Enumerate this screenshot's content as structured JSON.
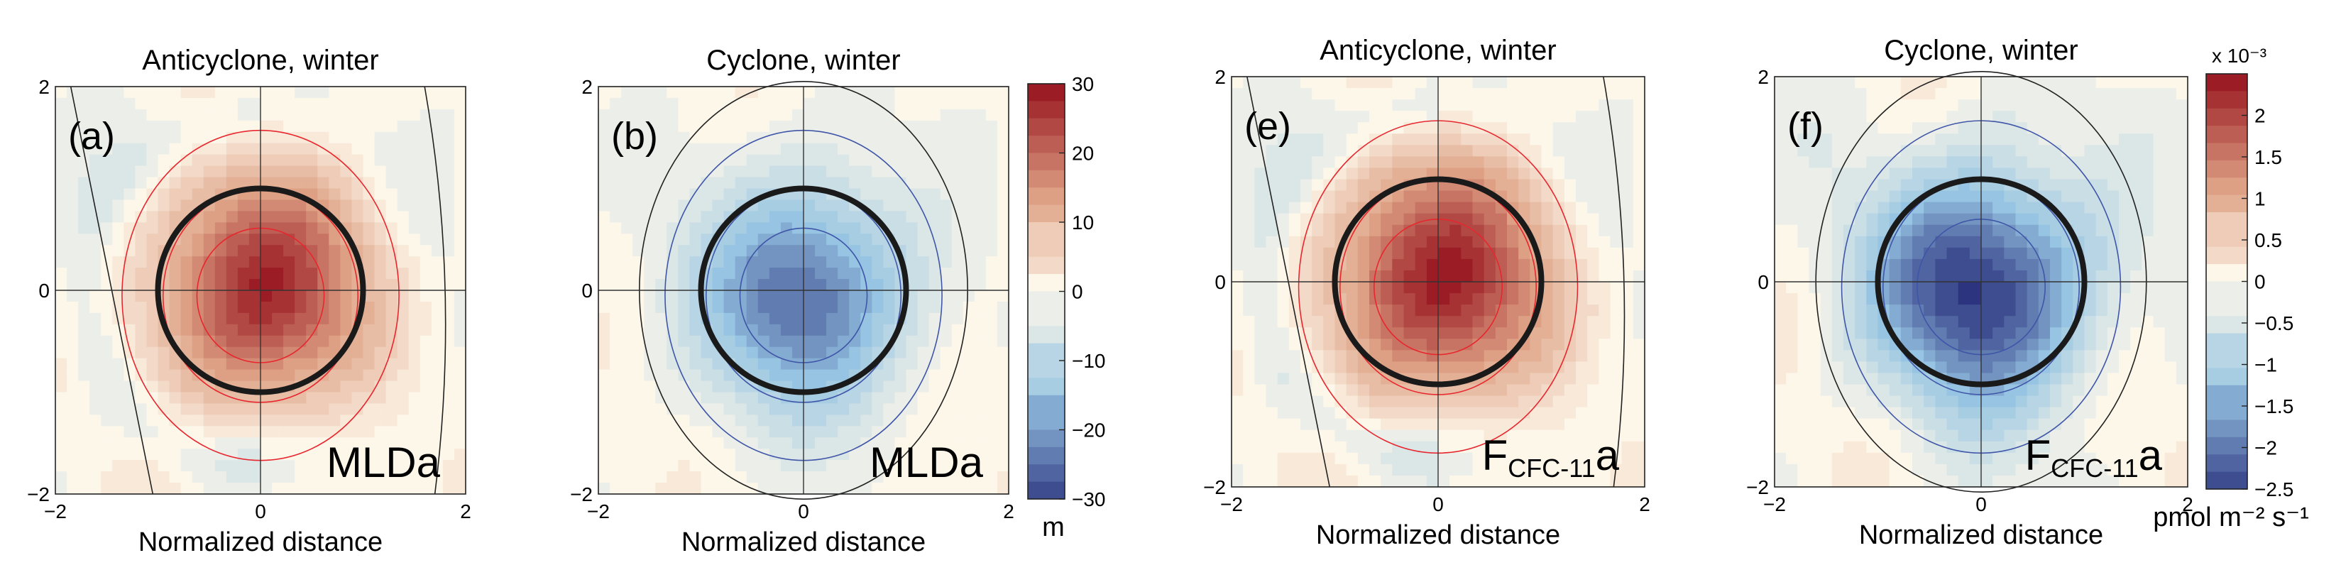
{
  "chart_data": [
    {
      "type": "heatmap",
      "panel_label": "(a)",
      "title": "Anticyclone, winter",
      "xlabel": "Normalized distance",
      "ylabel": "",
      "xlim": [
        -2,
        2
      ],
      "ylim": [
        -2,
        2
      ],
      "x_ticks": [
        "−2",
        "0",
        "2"
      ],
      "y_ticks": [
        "2",
        "0",
        "−2"
      ],
      "field": {
        "sign": 1,
        "center": [
          0,
          0
        ],
        "peak": 28,
        "halfwidth": [
          1.2,
          1.3
        ],
        "ambient": 4,
        "outer_negative": [
          -6,
          1.7
        ]
      },
      "variable_label": "MLDa",
      "variable_sub": "",
      "variable_suffix": "",
      "contour_color": "#e8262e",
      "grid": false,
      "colorbar": {
        "range": [
          -30,
          30
        ],
        "ticks": [
          "30",
          "20",
          "10",
          "0",
          "−10",
          "−20",
          "−30"
        ],
        "unit": "m",
        "exponent": ""
      }
    },
    {
      "type": "heatmap",
      "panel_label": "(b)",
      "title": "Cyclone, winter",
      "xlabel": "Normalized distance",
      "ylabel": "",
      "xlim": [
        -2,
        2
      ],
      "ylim": [
        -2,
        2
      ],
      "x_ticks": [
        "−2",
        "0",
        "2"
      ],
      "y_ticks": [
        "2",
        "0",
        "−2"
      ],
      "field": {
        "sign": -1,
        "center": [
          0,
          -0.05
        ],
        "peak": -24,
        "halfwidth": [
          1.15,
          1.25
        ],
        "ambient": 3,
        "outer_negative": [
          0,
          2
        ]
      },
      "variable_label": "MLDa",
      "variable_sub": "",
      "variable_suffix": "",
      "contour_color": "#3f55a8",
      "grid": false,
      "colorbar": {
        "range": [
          -30,
          30
        ],
        "ticks": [
          "30",
          "20",
          "10",
          "0",
          "−10",
          "−20",
          "−30"
        ],
        "unit": "m",
        "exponent": ""
      }
    },
    {
      "type": "heatmap",
      "panel_label": "(e)",
      "title": "Anticyclone, winter",
      "xlabel": "Normalized distance",
      "ylabel": "",
      "xlim": [
        -2,
        2
      ],
      "ylim": [
        -2,
        2
      ],
      "x_ticks": [
        "−2",
        "0",
        "2"
      ],
      "y_ticks": [
        "2",
        "0",
        "−2"
      ],
      "field": {
        "sign": 1,
        "center": [
          0,
          0
        ],
        "peak": 2.4,
        "halfwidth": [
          1.25,
          1.35
        ],
        "ambient": 0.35,
        "outer_negative": [
          -0.6,
          1.7
        ]
      },
      "variable_label": "F",
      "variable_sub": "CFC-11",
      "variable_suffix": "a",
      "contour_color": "#e8262e",
      "grid": false,
      "colorbar": {
        "range": [
          -2.5,
          2.5
        ],
        "ticks": [
          "2",
          "1.5",
          "1",
          "0.5",
          "0",
          "−0.5",
          "−1",
          "−1.5",
          "−2",
          "−2.5"
        ],
        "unit": "pmol m⁻² s⁻¹",
        "exponent": "x 10⁻³"
      }
    },
    {
      "type": "heatmap",
      "panel_label": "(f)",
      "title": "Cyclone, winter",
      "xlabel": "Normalized distance",
      "ylabel": "",
      "xlim": [
        -2,
        2
      ],
      "ylim": [
        -2,
        2
      ],
      "x_ticks": [
        "−2",
        "0",
        "2"
      ],
      "y_ticks": [
        "2",
        "0",
        "−2"
      ],
      "field": {
        "sign": -1,
        "center": [
          0,
          -0.05
        ],
        "peak": -2.5,
        "halfwidth": [
          1.2,
          1.3
        ],
        "ambient": 0.4,
        "outer_negative": [
          0,
          2
        ]
      },
      "variable_label": "F",
      "variable_sub": "CFC-11",
      "variable_suffix": "a",
      "contour_color": "#3f55a8",
      "grid": false,
      "colorbar": {
        "range": [
          -2.5,
          2.5
        ],
        "ticks": [
          "2",
          "1.5",
          "1",
          "0.5",
          "0",
          "−0.5",
          "−1",
          "−1.5",
          "−2",
          "−2.5"
        ],
        "unit": "pmol m⁻² s⁻¹",
        "exponent": "x 10⁻³"
      }
    }
  ],
  "colors": {
    "max_red": "#9b1c24",
    "zero": "#fdf7ea",
    "max_blue": "#2c3480"
  }
}
